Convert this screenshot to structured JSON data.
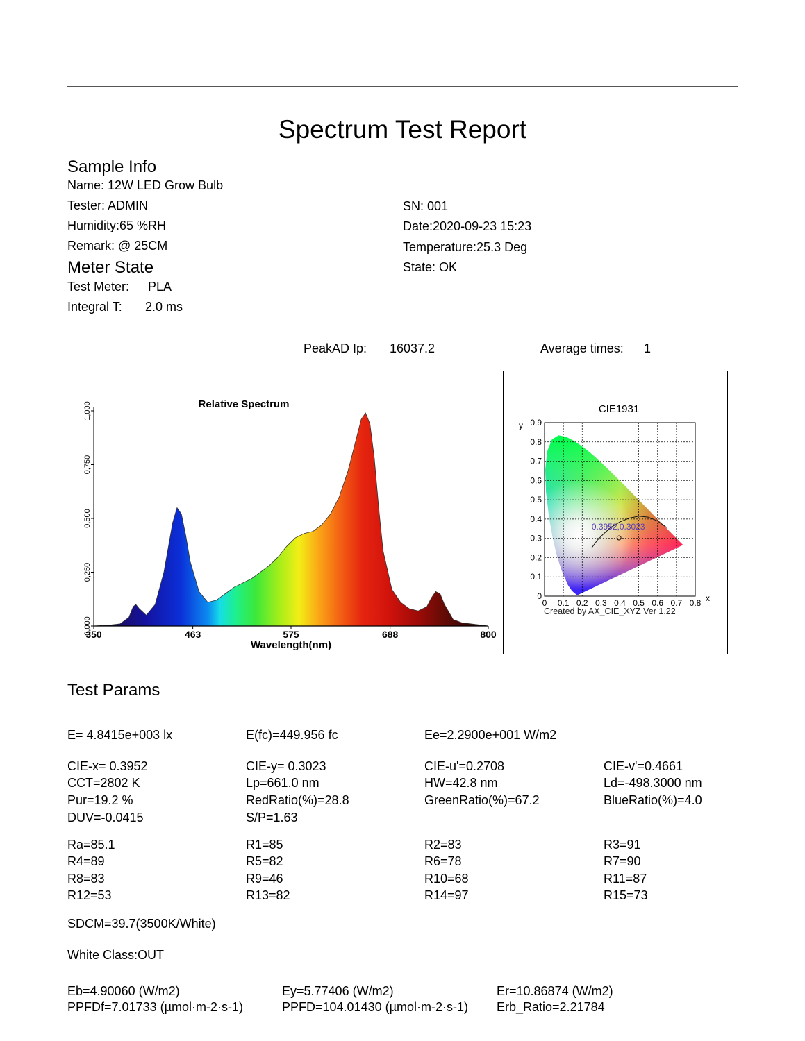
{
  "title": "Spectrum Test Report",
  "sample_info": {
    "heading": "Sample Info",
    "name": "Name: 12W LED Grow Bulb",
    "tester": "Tester: ADMIN",
    "humidity": "Humidity:65 %RH",
    "remark": "Remark: @ 25CM",
    "sn": "SN: 001",
    "date": "Date:2020-09-23 15:23",
    "temperature": "Temperature:25.3 Deg",
    "state": "State: OK"
  },
  "meter_state": {
    "heading": "Meter State",
    "test_meter_label": "Test Meter:",
    "test_meter_value": "PLA",
    "integral_label": "Integral T:",
    "integral_value": "2.0 ms"
  },
  "peak": {
    "peak_label": "PeakAD Ip:",
    "peak_value": "16037.2",
    "avg_label": "Average times:",
    "avg_value": "1"
  },
  "chart_data": [
    {
      "type": "area",
      "title": "Relative Spectrum",
      "xlabel": "Wavelength(nm)",
      "ylabel": "",
      "xlim": [
        350,
        800
      ],
      "ylim": [
        0,
        1
      ],
      "x_ticks": [
        "350",
        "463",
        "575",
        "688",
        "800"
      ],
      "y_ticks": [
        "0,000",
        "0,250",
        "0,500",
        "0,750",
        "1,000"
      ],
      "fill": "visible spectrum colors by wavelength",
      "x": [
        350,
        370,
        380,
        390,
        395,
        398,
        402,
        410,
        420,
        430,
        440,
        445,
        450,
        455,
        460,
        470,
        480,
        490,
        500,
        510,
        520,
        530,
        540,
        550,
        560,
        570,
        580,
        590,
        600,
        610,
        620,
        630,
        640,
        645,
        650,
        655,
        660,
        665,
        670,
        675,
        680,
        690,
        700,
        710,
        720,
        730,
        735,
        740,
        745,
        750,
        760,
        770,
        780,
        790,
        800
      ],
      "y": [
        0.0,
        0.005,
        0.01,
        0.04,
        0.09,
        0.1,
        0.08,
        0.05,
        0.1,
        0.25,
        0.48,
        0.55,
        0.52,
        0.42,
        0.3,
        0.16,
        0.11,
        0.12,
        0.15,
        0.18,
        0.2,
        0.22,
        0.25,
        0.28,
        0.32,
        0.37,
        0.41,
        0.43,
        0.44,
        0.47,
        0.52,
        0.6,
        0.72,
        0.8,
        0.88,
        0.96,
        0.99,
        0.94,
        0.78,
        0.55,
        0.35,
        0.17,
        0.11,
        0.08,
        0.07,
        0.09,
        0.13,
        0.16,
        0.15,
        0.1,
        0.03,
        0.015,
        0.01,
        0.005,
        0.0
      ]
    },
    {
      "type": "scatter",
      "title": "CIE1931",
      "xlabel": "x",
      "ylabel": "y",
      "xlim": [
        0,
        0.8
      ],
      "ylim": [
        0,
        0.9
      ],
      "x_ticks": [
        "0",
        "0.1",
        "0.2",
        "0.3",
        "0.4",
        "0.5",
        "0.6",
        "0.7",
        "0.8"
      ],
      "y_ticks": [
        "0",
        "0.1",
        "0.2",
        "0.3",
        "0.4",
        "0.5",
        "0.6",
        "0.7",
        "0.8",
        "0.9"
      ],
      "point": {
        "x": 0.3952,
        "y": 0.3023
      },
      "point_label": "0.3952,0.3023",
      "footer": "Created by AX_CIE_XYZ Ver 1.22"
    }
  ],
  "test_params": {
    "heading": "Test Params",
    "rows": [
      [
        "E=  4.8415e+003 lx",
        "E(fc)=449.956 fc",
        "Ee=2.2900e+001 W/m2",
        ""
      ],
      [
        "CIE-x= 0.3952",
        "CIE-y= 0.3023",
        "CIE-u'=0.2708",
        "CIE-v'=0.4661"
      ],
      [
        "CCT=2802 K",
        "Lp=661.0 nm",
        "HW=42.8 nm",
        "Ld=-498.3000 nm"
      ],
      [
        "Pur=19.2 %",
        "RedRatio(%)=28.8",
        "GreenRatio(%)=67.2",
        "BlueRatio(%)=4.0"
      ],
      [
        "DUV=-0.0415",
        "S/P=1.63",
        "",
        ""
      ],
      [
        "Ra=85.1",
        "R1=85",
        "R2=83",
        "R3=91"
      ],
      [
        "R4=89",
        "R5=82",
        "R6=78",
        "R7=90"
      ],
      [
        "R8=83",
        "R9=46",
        "R10=68",
        "R11=87"
      ],
      [
        "R12=53",
        "R13=82",
        "R14=97",
        "R15=73"
      ]
    ],
    "sdcm": "SDCM=39.7(3500K/White)",
    "white_class": "White Class:OUT",
    "eb": "Eb=4.90060 (W/m2)",
    "ey": "Ey=5.77406 (W/m2)",
    "er": "Er=10.86874 (W/m2)",
    "ppfdf": "PPFDf=7.01733 (µmol·m-2·s-1)",
    "ppfd": "PPFD=104.01430 (µmol·m-2·s-1)",
    "erb": "Erb_Ratio=2.21784"
  }
}
